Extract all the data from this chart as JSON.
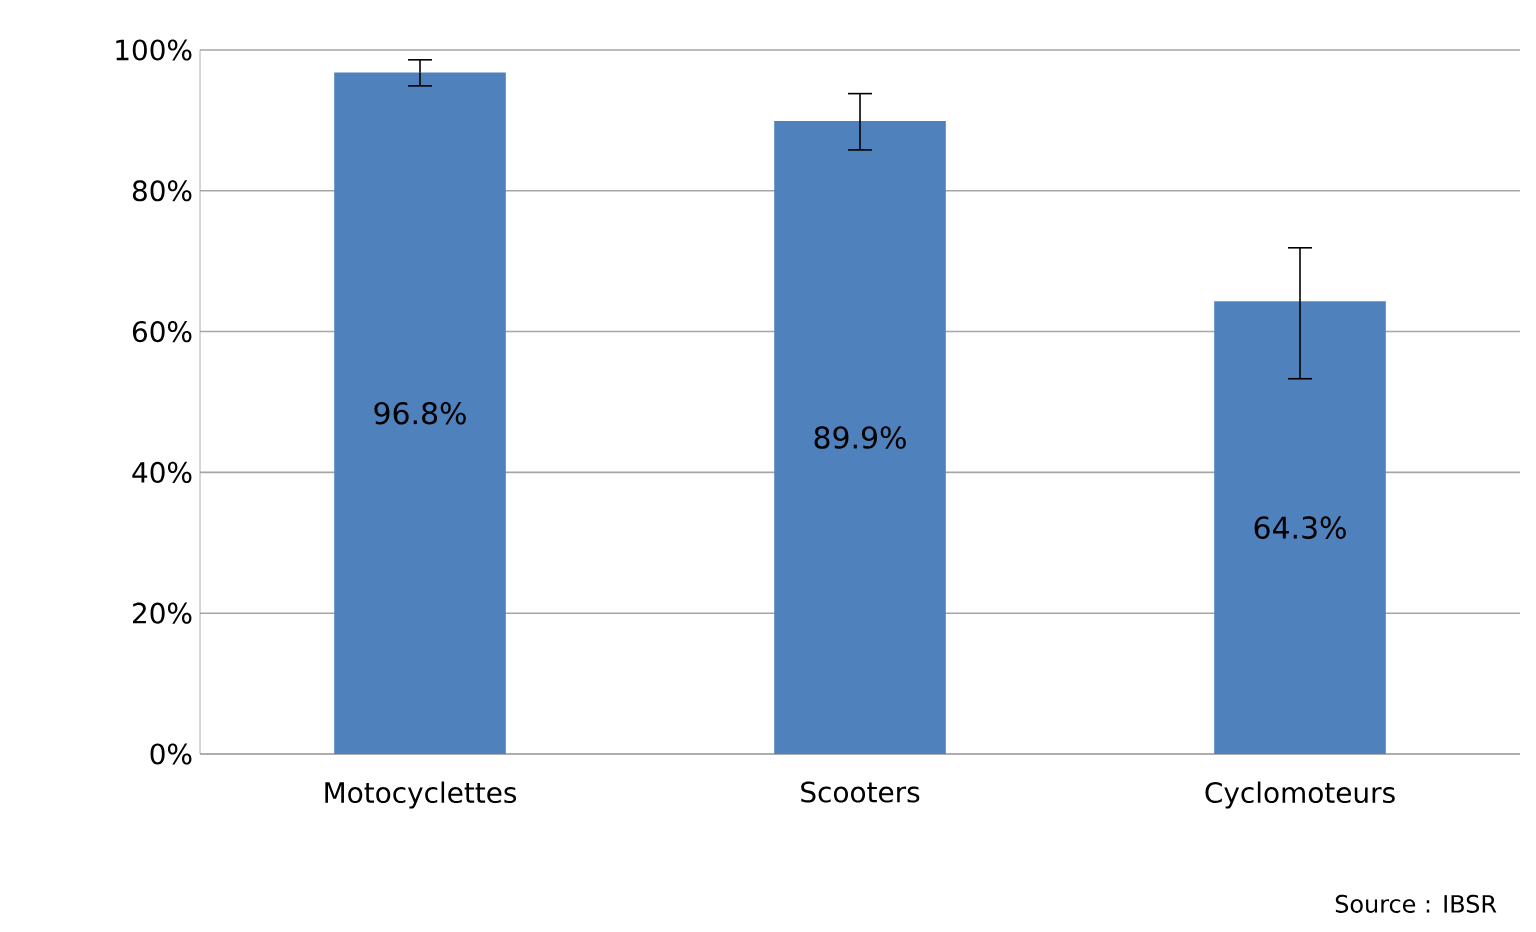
{
  "chart_data": {
    "type": "bar",
    "categories": [
      "Motocyclettes",
      "Scooters",
      "Cyclomoteurs"
    ],
    "values": [
      96.8,
      89.9,
      64.3
    ],
    "color": "#4f81bd",
    "errors": [
      [
        94.9,
        98.6
      ],
      [
        85.8,
        93.8
      ],
      [
        53.3,
        71.9
      ]
    ],
    "value_labels": [
      "96.8%",
      "89.9%",
      "64.3%"
    ],
    "ylim": [
      0,
      100
    ],
    "yticks": [
      {
        "value": 0,
        "label": "0%"
      },
      {
        "value": 20,
        "label": "20%"
      },
      {
        "value": 40,
        "label": "40%"
      },
      {
        "value": 60,
        "label": "60%"
      },
      {
        "value": 80,
        "label": "80%"
      },
      {
        "value": 100,
        "label": "100%"
      }
    ],
    "grid": "y",
    "annotations": [
      "Source : IBSR"
    ]
  }
}
